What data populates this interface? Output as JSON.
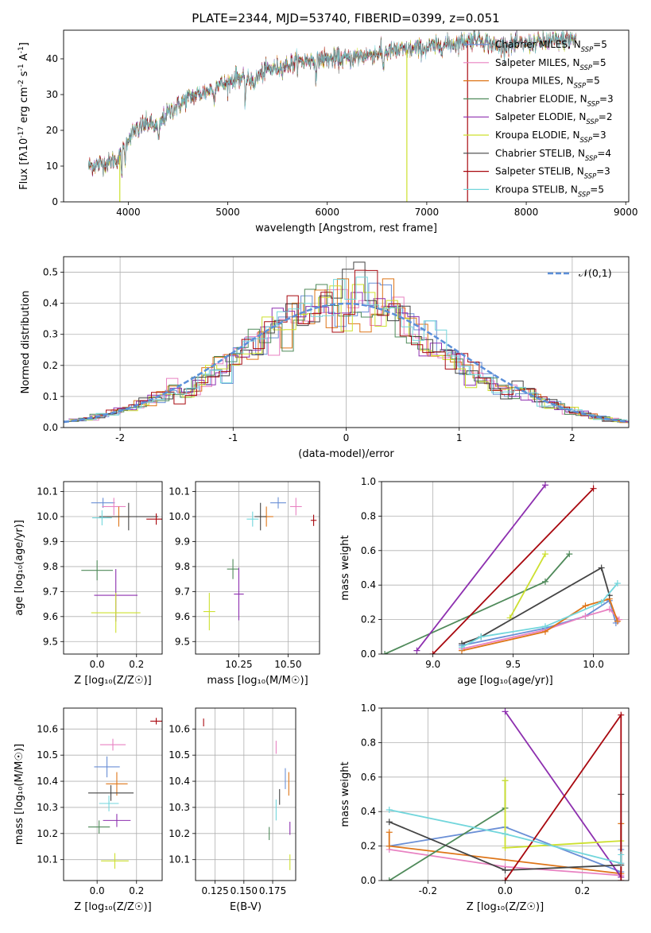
{
  "figure": {
    "title": "PLATE=2344, MJD=53740, FIBERID=0399, z=0.051"
  },
  "series": [
    {
      "key": "cm",
      "name": "Chabrier MILES, N<SSP>=5",
      "color": "#6a8fd6"
    },
    {
      "key": "sm",
      "name": "Salpeter MILES, N<SSP>=5",
      "color": "#e882c2"
    },
    {
      "key": "km",
      "name": "Kroupa MILES, N<SSP>=5",
      "color": "#de7518"
    },
    {
      "key": "ce",
      "name": "Chabrier ELODIE, N<SSP>=3",
      "color": "#4f8a5a"
    },
    {
      "key": "se",
      "name": "Salpeter ELODIE, N<SSP>=2",
      "color": "#8d2faf"
    },
    {
      "key": "ke",
      "name": "Kroupa ELODIE, N<SSP>=3",
      "color": "#cde02f"
    },
    {
      "key": "cs",
      "name": "Chabrier STELIB, N<SSP>=4",
      "color": "#444444"
    },
    {
      "key": "ss",
      "name": "Salpeter STELIB, N<SSP>=3",
      "color": "#a8080f"
    },
    {
      "key": "ks",
      "name": "Kroupa STELIB, N<SSP>=5",
      "color": "#72d6dc"
    }
  ],
  "chart_data": [
    {
      "id": "spectrum",
      "type": "line",
      "title": "PLATE=2344, MJD=53740, FIBERID=0399, z=0.051",
      "xlabel": "wavelength [Angstrom, rest frame]",
      "ylabel": "Flux [f_λ10^-17 erg cm^-2 s^-1 A^-1]",
      "xlim": [
        3350,
        9030
      ],
      "ylim": [
        0,
        48
      ],
      "xticks": [
        4000,
        5000,
        6000,
        7000,
        8000,
        9000
      ],
      "yticks": [
        0,
        10,
        20,
        30,
        40
      ],
      "grid": false,
      "legend": "right",
      "continuum": [
        [
          3600,
          10
        ],
        [
          3800,
          11
        ],
        [
          3900,
          12
        ],
        [
          4000,
          18
        ],
        [
          4100,
          21
        ],
        [
          4200,
          22
        ],
        [
          4300,
          21
        ],
        [
          4400,
          25
        ],
        [
          4500,
          27
        ],
        [
          4600,
          29
        ],
        [
          4700,
          30
        ],
        [
          4800,
          31
        ],
        [
          4900,
          33
        ],
        [
          5000,
          33
        ],
        [
          5100,
          35
        ],
        [
          5200,
          34
        ],
        [
          5300,
          35
        ],
        [
          5400,
          37
        ],
        [
          5500,
          37.5
        ],
        [
          5700,
          39
        ],
        [
          5900,
          40
        ],
        [
          6000,
          40
        ],
        [
          6200,
          40
        ],
        [
          6400,
          41
        ],
        [
          6600,
          42
        ],
        [
          6800,
          42.5
        ],
        [
          7000,
          43
        ],
        [
          7200,
          44
        ],
        [
          7400,
          45
        ],
        [
          7500,
          46
        ],
        [
          7700,
          43.5
        ],
        [
          7900,
          44
        ],
        [
          8100,
          44.5
        ],
        [
          8300,
          45
        ],
        [
          8500,
          45.5
        ]
      ],
      "absorption": [
        [
          3934,
          5
        ],
        [
          3968,
          4
        ],
        [
          4102,
          3
        ],
        [
          4305,
          5
        ],
        [
          4861,
          4
        ],
        [
          5175,
          6
        ],
        [
          5270,
          3
        ],
        [
          5890,
          6
        ],
        [
          6563,
          5
        ]
      ],
      "dropouts": [
        {
          "series": "Kroupa ELODIE, N<SSP>=3",
          "x": 3915
        },
        {
          "series": "Kroupa ELODIE, N<SSP>=3",
          "x": 6800
        },
        {
          "series": "Salpeter STELIB, N<SSP>=3",
          "x": 7410
        }
      ]
    },
    {
      "id": "residuals",
      "type": "line",
      "xlabel": "(data-model)/error",
      "ylabel": "Normed distribution",
      "xlim": [
        -2.5,
        2.5
      ],
      "ylim": [
        0,
        0.55
      ],
      "xticks": [
        -2,
        -1,
        0,
        1,
        2
      ],
      "yticks": [
        0.0,
        0.1,
        0.2,
        0.3,
        0.4,
        0.5
      ],
      "grid": true,
      "legend": "top-right",
      "reference": {
        "name": "𝒩(0,1)",
        "color": "#5b8fd9",
        "style": "dashed"
      },
      "bin_width": 0.1
    },
    {
      "id": "z_age",
      "type": "scatter",
      "xlabel": "Z [log10(Z/Z☉)]",
      "ylabel": "age  [log10(age/yr)]",
      "xlim": [
        -0.17,
        0.33
      ],
      "ylim": [
        9.45,
        10.14
      ],
      "xticks": [
        0.0,
        0.2
      ],
      "yticks": [
        9.5,
        9.6,
        9.7,
        9.8,
        9.9,
        10.0,
        10.1
      ],
      "grid": true,
      "points": [
        {
          "s": "cm",
          "x": 0.03,
          "xerr": 0.12,
          "y": 10.055,
          "yerr": 0.04
        },
        {
          "s": "sm",
          "x": 0.085,
          "xerr": 0.12,
          "y": 10.04,
          "yerr": 0.07
        },
        {
          "s": "km",
          "x": 0.11,
          "xerr": 0.12,
          "y": 10.0,
          "yerr": 0.08
        },
        {
          "s": "ce",
          "x": 0.0,
          "xerr": 0.16,
          "y": 9.785,
          "yerr": 0.08
        },
        {
          "s": "se",
          "x": 0.095,
          "xerr": 0.22,
          "y": 9.685,
          "yerr": 0.21
        },
        {
          "s": "ke",
          "x": 0.095,
          "xerr": 0.25,
          "y": 9.615,
          "yerr": 0.16
        },
        {
          "s": "cs",
          "x": 0.16,
          "xerr": 0.3,
          "y": 10.0,
          "yerr": 0.11
        },
        {
          "s": "ss",
          "x": 0.3,
          "xerr": 0.1,
          "y": 9.99,
          "yerr": 0.045
        },
        {
          "s": "ks",
          "x": 0.025,
          "xerr": 0.1,
          "y": 9.995,
          "yerr": 0.06
        }
      ]
    },
    {
      "id": "mass_age",
      "type": "scatter",
      "xlabel": "mass [log10(M/M☉)]",
      "ylabel": "",
      "xlim": [
        10.03,
        10.66
      ],
      "ylim": [
        9.45,
        10.14
      ],
      "xticks": [
        10.25,
        10.5
      ],
      "yticks": [
        9.5,
        9.6,
        9.7,
        9.8,
        9.9,
        10.0,
        10.1
      ],
      "grid": true,
      "points": [
        {
          "s": "cm",
          "x": 10.45,
          "xerr": 0.08,
          "y": 10.055,
          "yerr": 0.045
        },
        {
          "s": "sm",
          "x": 10.54,
          "xerr": 0.06,
          "y": 10.04,
          "yerr": 0.07
        },
        {
          "s": "km",
          "x": 10.39,
          "xerr": 0.07,
          "y": 10.0,
          "yerr": 0.08
        },
        {
          "s": "ce",
          "x": 10.22,
          "xerr": 0.06,
          "y": 9.79,
          "yerr": 0.08
        },
        {
          "s": "se",
          "x": 10.25,
          "xerr": 0.05,
          "y": 9.69,
          "yerr": 0.21
        },
        {
          "s": "ke",
          "x": 10.1,
          "xerr": 0.06,
          "y": 9.62,
          "yerr": 0.15
        },
        {
          "s": "cs",
          "x": 10.36,
          "xerr": 0.06,
          "y": 10.0,
          "yerr": 0.11
        },
        {
          "s": "ss",
          "x": 10.63,
          "xerr": 0.03,
          "y": 9.985,
          "yerr": 0.045
        },
        {
          "s": "ks",
          "x": 10.32,
          "xerr": 0.06,
          "y": 9.99,
          "yerr": 0.06
        }
      ]
    },
    {
      "id": "age_weight",
      "type": "line",
      "xlabel": "age  [log10(age/yr)]",
      "ylabel": "mass weight",
      "xlim": [
        8.68,
        10.22
      ],
      "ylim": [
        0,
        1.0
      ],
      "xticks": [
        9.0,
        9.5,
        10.0
      ],
      "yticks": [
        0.0,
        0.2,
        0.4,
        0.6,
        0.8,
        1.0
      ],
      "grid": true,
      "lines": [
        {
          "s": "cm",
          "x": [
            9.18,
            9.7,
            9.95,
            10.1,
            10.14
          ],
          "y": [
            0.05,
            0.15,
            0.22,
            0.31,
            0.18
          ]
        },
        {
          "s": "sm",
          "x": [
            9.18,
            9.7,
            9.95,
            10.1,
            10.16
          ],
          "y": [
            0.03,
            0.14,
            0.22,
            0.26,
            0.2
          ]
        },
        {
          "s": "km",
          "x": [
            9.18,
            9.7,
            9.95,
            10.1,
            10.15
          ],
          "y": [
            0.02,
            0.13,
            0.28,
            0.32,
            0.19
          ]
        },
        {
          "s": "ce",
          "x": [
            8.7,
            9.7,
            9.85
          ],
          "y": [
            0.0,
            0.42,
            0.58
          ]
        },
        {
          "s": "se",
          "x": [
            8.9,
            9.7
          ],
          "y": [
            0.02,
            0.98
          ]
        },
        {
          "s": "ke",
          "x": [
            9.48,
            9.7
          ],
          "y": [
            0.21,
            0.58
          ]
        },
        {
          "s": "cs",
          "x": [
            9.18,
            9.3,
            10.05,
            10.1
          ],
          "y": [
            0.06,
            0.1,
            0.5,
            0.34
          ]
        },
        {
          "s": "ss",
          "x": [
            9.0,
            10.0
          ],
          "y": [
            0.0,
            0.96
          ]
        },
        {
          "s": "ks",
          "x": [
            9.18,
            9.3,
            9.7,
            10.05,
            10.15
          ],
          "y": [
            0.04,
            0.1,
            0.16,
            0.3,
            0.41
          ]
        }
      ]
    },
    {
      "id": "z_mass",
      "type": "scatter",
      "xlabel": "Z [log10(Z/Z☉)]",
      "ylabel": "mass [log10(M/M☉)]",
      "xlim": [
        -0.17,
        0.33
      ],
      "ylim": [
        10.02,
        10.68
      ],
      "xticks": [
        0.0,
        0.2
      ],
      "yticks": [
        10.1,
        10.2,
        10.3,
        10.4,
        10.5,
        10.6
      ],
      "grid": true,
      "points": [
        {
          "s": "cm",
          "x": 0.05,
          "xerr": 0.13,
          "y": 10.455,
          "yerr": 0.08
        },
        {
          "s": "sm",
          "x": 0.08,
          "xerr": 0.13,
          "y": 10.54,
          "yerr": 0.045
        },
        {
          "s": "km",
          "x": 0.1,
          "xerr": 0.11,
          "y": 10.39,
          "yerr": 0.09
        },
        {
          "s": "ce",
          "x": 0.01,
          "xerr": 0.11,
          "y": 10.225,
          "yerr": 0.05
        },
        {
          "s": "se",
          "x": 0.1,
          "xerr": 0.14,
          "y": 10.25,
          "yerr": 0.05
        },
        {
          "s": "ke",
          "x": 0.09,
          "xerr": 0.14,
          "y": 10.095,
          "yerr": 0.06
        },
        {
          "s": "cs",
          "x": 0.07,
          "xerr": 0.23,
          "y": 10.355,
          "yerr": 0.06
        },
        {
          "s": "ss",
          "x": 0.3,
          "xerr": 0.06,
          "y": 10.63,
          "yerr": 0.025
        },
        {
          "s": "ks",
          "x": 0.06,
          "xerr": 0.1,
          "y": 10.315,
          "yerr": 0.06
        }
      ]
    },
    {
      "id": "ebv_mass",
      "type": "scatter",
      "xlabel": "E(B-V)",
      "ylabel": "",
      "xlim": [
        0.108,
        0.195
      ],
      "ylim": [
        10.02,
        10.68
      ],
      "xticks": [
        0.125,
        0.15,
        0.175
      ],
      "tick_labels": [
        "0.125",
        "0.150",
        "0.175"
      ],
      "yticks": [
        10.1,
        10.2,
        10.3,
        10.4,
        10.5,
        10.6
      ],
      "grid": true,
      "points": [
        {
          "s": "cm",
          "x": 0.186,
          "y": 10.41,
          "yerr": 0.08
        },
        {
          "s": "sm",
          "x": 0.178,
          "y": 10.53,
          "yerr": 0.05
        },
        {
          "s": "km",
          "x": 0.189,
          "y": 10.39,
          "yerr": 0.09
        },
        {
          "s": "ce",
          "x": 0.172,
          "y": 10.2,
          "yerr": 0.05
        },
        {
          "s": "se",
          "x": 0.19,
          "y": 10.22,
          "yerr": 0.05
        },
        {
          "s": "ke",
          "x": 0.19,
          "y": 10.09,
          "yerr": 0.06
        },
        {
          "s": "cs",
          "x": 0.181,
          "y": 10.34,
          "yerr": 0.06
        },
        {
          "s": "ss",
          "x": 0.115,
          "y": 10.625,
          "yerr": 0.03
        },
        {
          "s": "ks",
          "x": 0.178,
          "y": 10.29,
          "yerr": 0.08
        }
      ]
    },
    {
      "id": "z_weight",
      "type": "line",
      "xlabel": "Z [log10(Z/Z☉)]",
      "ylabel": "mass weight",
      "xlim": [
        -0.32,
        0.32
      ],
      "ylim": [
        0,
        1.0
      ],
      "xticks": [
        -0.2,
        0.0,
        0.2
      ],
      "yticks": [
        0.0,
        0.2,
        0.4,
        0.6,
        0.8,
        1.0
      ],
      "grid": true,
      "lines": [
        {
          "s": "cm",
          "x": [
            -0.3,
            0.0,
            0.3,
            0.3
          ],
          "y": [
            0.2,
            0.31,
            0.05,
            0.18
          ]
        },
        {
          "s": "sm",
          "x": [
            -0.3,
            0.0,
            0.3,
            0.3
          ],
          "y": [
            0.18,
            0.08,
            0.03,
            0.1
          ]
        },
        {
          "s": "km",
          "x": [
            -0.3,
            -0.3,
            0.3,
            0.3
          ],
          "y": [
            0.28,
            0.2,
            0.04,
            0.33
          ]
        },
        {
          "s": "ce",
          "x": [
            -0.3,
            0.0,
            0.0
          ],
          "y": [
            0.0,
            0.42,
            0.58
          ]
        },
        {
          "s": "se",
          "x": [
            0.0,
            0.3
          ],
          "y": [
            0.98,
            0.02
          ]
        },
        {
          "s": "ke",
          "x": [
            0.0,
            0.0,
            0.3
          ],
          "y": [
            0.58,
            0.19,
            0.23
          ]
        },
        {
          "s": "cs",
          "x": [
            -0.3,
            0.0,
            0.3,
            0.3
          ],
          "y": [
            0.34,
            0.06,
            0.09,
            0.5
          ]
        },
        {
          "s": "ss",
          "x": [
            0.0,
            0.3,
            0.3
          ],
          "y": [
            0.0,
            0.96,
            0.0
          ]
        },
        {
          "s": "ks",
          "x": [
            -0.3,
            0.0,
            0.3,
            0.3
          ],
          "y": [
            0.41,
            0.27,
            0.1,
            0.15
          ]
        }
      ]
    }
  ]
}
